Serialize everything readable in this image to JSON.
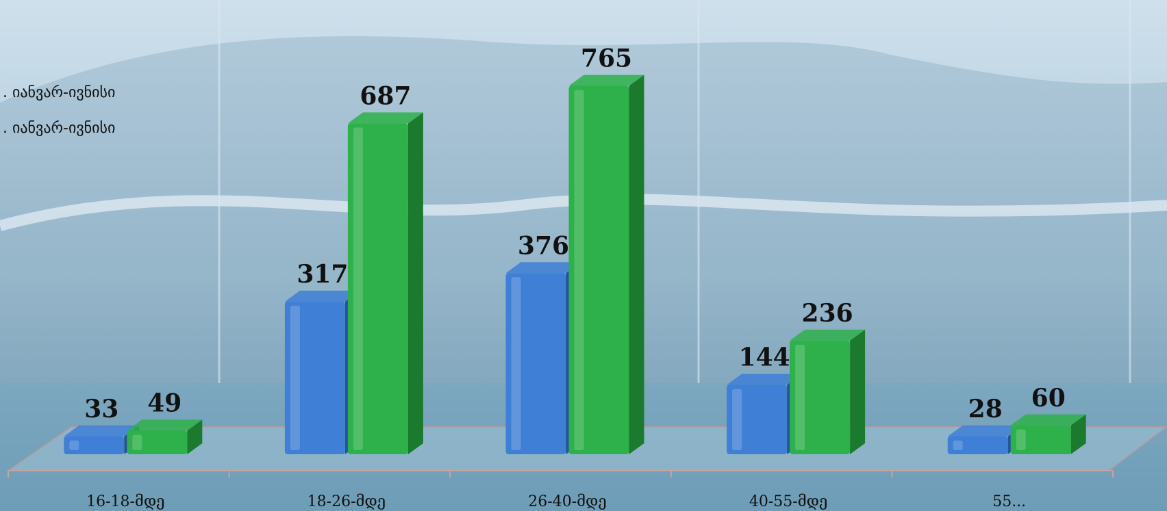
{
  "background": {
    "sky_top": "#c9dcea",
    "sky_mid": "#a9c7da",
    "ground": "#7fa7bf",
    "building": "#8fb0c6"
  },
  "legend": {
    "items": [
      {
        "label": ". იანვარ-ივნისი",
        "color": "#3f7fd6"
      },
      {
        "label": ". იანვარ-ივნისი",
        "color": "#2eb04a"
      }
    ]
  },
  "chart_data": {
    "type": "bar",
    "categories": [
      "16-18-მდე",
      "18-26-მდე",
      "26-40-მდე",
      "40-55-მდე",
      "55..."
    ],
    "series": [
      {
        "values": [
          33,
          317,
          376,
          144,
          28
        ],
        "color": "#3f7fd6",
        "dark": "#23549c"
      },
      {
        "values": [
          49,
          687,
          765,
          236,
          60
        ],
        "color": "#2eb04a",
        "dark": "#1b7a2e"
      }
    ],
    "ylim": [
      0,
      800
    ],
    "grid": false,
    "legend_position": "top-left",
    "three_d": true
  }
}
